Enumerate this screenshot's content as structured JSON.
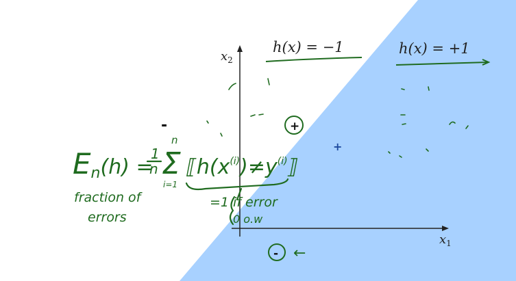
{
  "colors": {
    "positive_region": "#a8d1ff",
    "negative_region": "#ffffff",
    "axis": "#222222",
    "handwriting": "#1f6b1f",
    "point": "#111111",
    "blue_plus": "#1f4ba0"
  },
  "axes": {
    "x_label_main": "x",
    "x_label_sub": "1",
    "y_label_main": "x",
    "y_label_sub": "2"
  },
  "regions": {
    "negative_label": "h(x) = −1",
    "positive_label": "h(x) = +1"
  },
  "points": {
    "plus_symbol": "+",
    "minus_symbol": "-",
    "blue_plus": "+"
  },
  "formula": {
    "lhs": "E",
    "lhs_sub": "n",
    "lhs_arg": "(h) =",
    "frac_num": "1",
    "frac_den": "n",
    "sum_symbol": "Σ",
    "sum_top": "n",
    "sum_bottom": "i=1",
    "bracket_content": "⟦h(x",
    "sup_i1": "(i)",
    "neq_part": ")≠y",
    "sup_i2": "(i)",
    "bracket_close": "⟧",
    "note_line1": "fraction of",
    "note_line2": "errors",
    "indicator_top": "=1 if error",
    "indicator_bottom": "0  o.w"
  },
  "arrow_glyph": "←"
}
